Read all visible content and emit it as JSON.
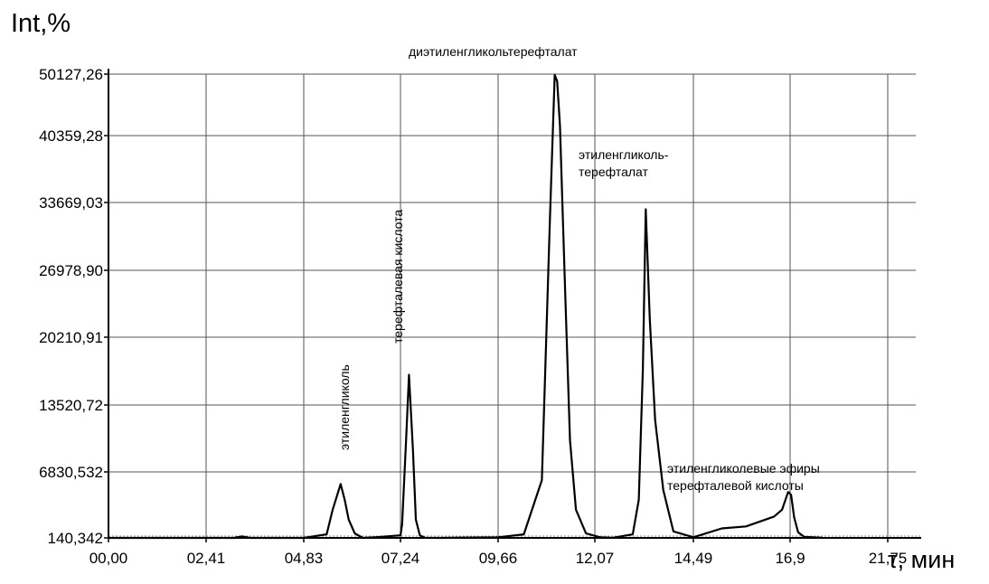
{
  "chart_data": {
    "type": "line",
    "ylabel": "Int,%",
    "xlabel": "τ, мин",
    "x_ticks": [
      "00,00",
      "02,41",
      "04,83",
      "07,24",
      "09,66",
      "12,07",
      "14,49",
      "16,9",
      "21,75"
    ],
    "y_ticks": [
      "140,342",
      "6830,532",
      "13520,72",
      "20210,91",
      "26978,90",
      "33669,03",
      "40359,28",
      "50127,26"
    ],
    "grid": true,
    "annotations": [
      {
        "text": "диэтиленгликольтерефталат"
      },
      {
        "text": "этиленгликоль-\nтерефталат"
      },
      {
        "text": "терефталевая кислота"
      },
      {
        "text": "этиленгликоль"
      },
      {
        "text": "этиленгликолевые эфиры\nтерефталевой кислоты"
      }
    ],
    "series": [
      {
        "x": [
          0.0,
          2.41,
          3.1,
          3.3,
          3.5,
          4.83,
          5.4,
          5.55,
          5.75,
          5.85,
          5.95,
          6.1,
          6.3,
          6.6,
          7.24,
          7.28,
          7.38,
          7.45,
          7.55,
          7.62,
          7.72,
          7.85,
          8.2,
          9.66,
          10.3,
          10.75,
          10.95,
          11.07,
          11.13,
          11.2,
          11.33,
          11.45,
          11.6,
          11.85,
          12.2,
          12.5,
          13.0,
          13.15,
          13.25,
          13.32,
          13.42,
          13.55,
          13.75,
          14.0,
          14.49,
          15.2,
          15.8,
          16.5,
          16.7,
          16.85,
          16.95,
          17.1,
          17.3,
          17.6,
          18.5
        ],
        "y": [
          140,
          140,
          140,
          300,
          140,
          140,
          500,
          3000,
          5600,
          4000,
          2000,
          600,
          140,
          200,
          400,
          1500,
          10000,
          16500,
          9000,
          2000,
          400,
          150,
          140,
          200,
          500,
          6000,
          32000,
          50000,
          49000,
          42000,
          25000,
          10000,
          3000,
          600,
          200,
          150,
          500,
          4000,
          17000,
          33000,
          22000,
          12000,
          5000,
          800,
          200,
          1100,
          1300,
          2300,
          3000,
          4800,
          4500,
          2200,
          700,
          250,
          160
        ]
      }
    ]
  }
}
